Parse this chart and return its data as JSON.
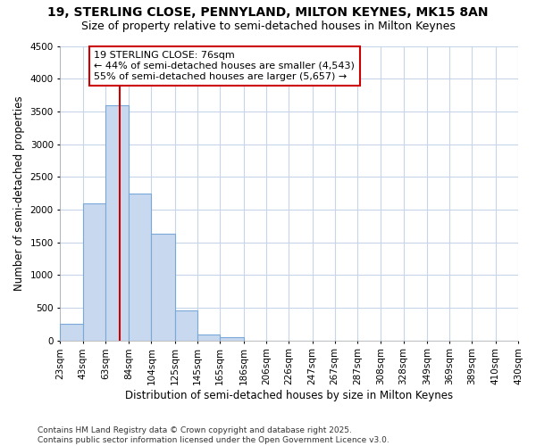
{
  "title": "19, STERLING CLOSE, PENNYLAND, MILTON KEYNES, MK15 8AN",
  "subtitle": "Size of property relative to semi-detached houses in Milton Keynes",
  "xlabel": "Distribution of semi-detached houses by size in Milton Keynes",
  "ylabel": "Number of semi-detached properties",
  "footer_line1": "Contains HM Land Registry data © Crown copyright and database right 2025.",
  "footer_line2": "Contains public sector information licensed under the Open Government Licence v3.0.",
  "property_label": "19 STERLING CLOSE: 76sqm",
  "annotation_left": "← 44% of semi-detached houses are smaller (4,543)",
  "annotation_right": "55% of semi-detached houses are larger (5,657) →",
  "property_sqm": 76,
  "bin_edges": [
    23,
    43,
    63,
    84,
    104,
    125,
    145,
    165,
    186,
    206,
    226,
    247,
    267,
    287,
    308,
    328,
    349,
    369,
    389,
    410,
    430
  ],
  "bin_labels": [
    "23sqm",
    "43sqm",
    "63sqm",
    "84sqm",
    "104sqm",
    "125sqm",
    "145sqm",
    "165sqm",
    "186sqm",
    "206sqm",
    "226sqm",
    "247sqm",
    "267sqm",
    "287sqm",
    "308sqm",
    "328sqm",
    "349sqm",
    "369sqm",
    "389sqm",
    "410sqm",
    "430sqm"
  ],
  "bar_values": [
    260,
    2100,
    3600,
    2250,
    1625,
    460,
    90,
    50,
    0,
    0,
    0,
    0,
    0,
    0,
    0,
    0,
    0,
    0,
    0,
    0
  ],
  "bar_color": "#c8d8ee",
  "bar_edge_color": "#7aa8d8",
  "vline_color": "#cc0000",
  "vline_x": 76,
  "box_facecolor": "#ffffff",
  "box_edgecolor": "#cc0000",
  "ylim": [
    0,
    4500
  ],
  "yticks": [
    0,
    500,
    1000,
    1500,
    2000,
    2500,
    3000,
    3500,
    4000,
    4500
  ],
  "fig_background": "#ffffff",
  "plot_background": "#ffffff",
  "grid_color": "#c8d4e8",
  "title_fontsize": 10,
  "subtitle_fontsize": 9,
  "axis_fontsize": 8.5,
  "tick_fontsize": 7.5,
  "footer_fontsize": 6.5,
  "annot_fontsize": 8
}
